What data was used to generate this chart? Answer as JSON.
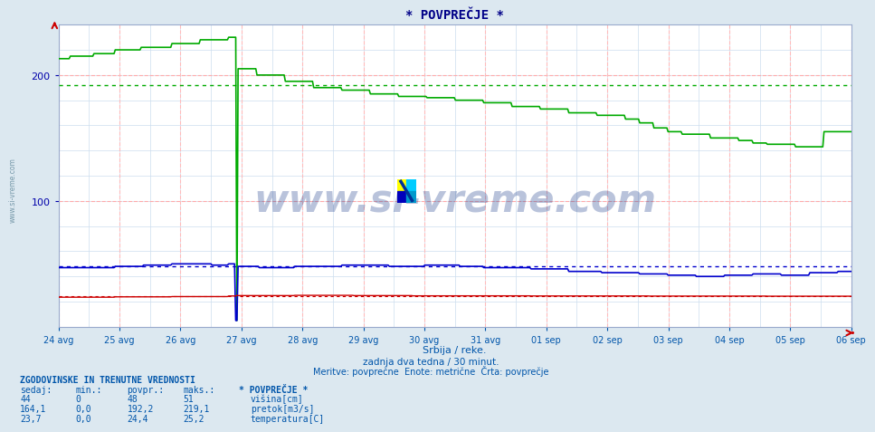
{
  "title": "* POVPREČJE *",
  "xlabel": "Srbija / reke.",
  "subtitle1": "zadnja dva tedna / 30 minut.",
  "subtitle2": "Meritve: povprečne  Enote: metrične  Črta: povprečje",
  "bg_color": "#dce8f0",
  "plot_bg_color": "#ffffff",
  "grid_color_h": "#ffaaaa",
  "grid_color_v": "#ffbbbb",
  "inner_grid_color": "#ccddee",
  "title_color": "#000088",
  "axis_color": "#0000aa",
  "text_color": "#0055aa",
  "ylim": [
    0,
    240
  ],
  "yticks": [
    100,
    200
  ],
  "n_points": 672,
  "date_labels": [
    "24 avg",
    "25 avg",
    "26 avg",
    "27 avg",
    "28 avg",
    "29 avg",
    "30 avg",
    "31 avg",
    "01 sep",
    "02 sep",
    "03 sep",
    "04 sep",
    "05 sep",
    "06 sep"
  ],
  "visina_color": "#0000cc",
  "pretok_color": "#00aa00",
  "temp_color": "#cc0000",
  "visina_avg": 48,
  "pretok_avg": 192.2,
  "temp_avg": 24.4,
  "watermark": "www.si-vreme.com",
  "watermark_color": "#1a3a8a",
  "table_title": "ZGODOVINSKE IN TRENUTNE VREDNOSTI",
  "col_headers": [
    "sedaj:",
    "min.:",
    "povpr.:",
    "maks.:",
    "* POVPREČJE *"
  ],
  "visina_row": [
    "44",
    "0",
    "48",
    "51"
  ],
  "pretok_row": [
    "164,1",
    "0,0",
    "192,2",
    "219,1"
  ],
  "temp_row": [
    "23,7",
    "0,0",
    "24,4",
    "25,2"
  ],
  "row_labels": [
    "višina[cm]",
    "pretok[m3/s]",
    "temperatura[C]"
  ]
}
